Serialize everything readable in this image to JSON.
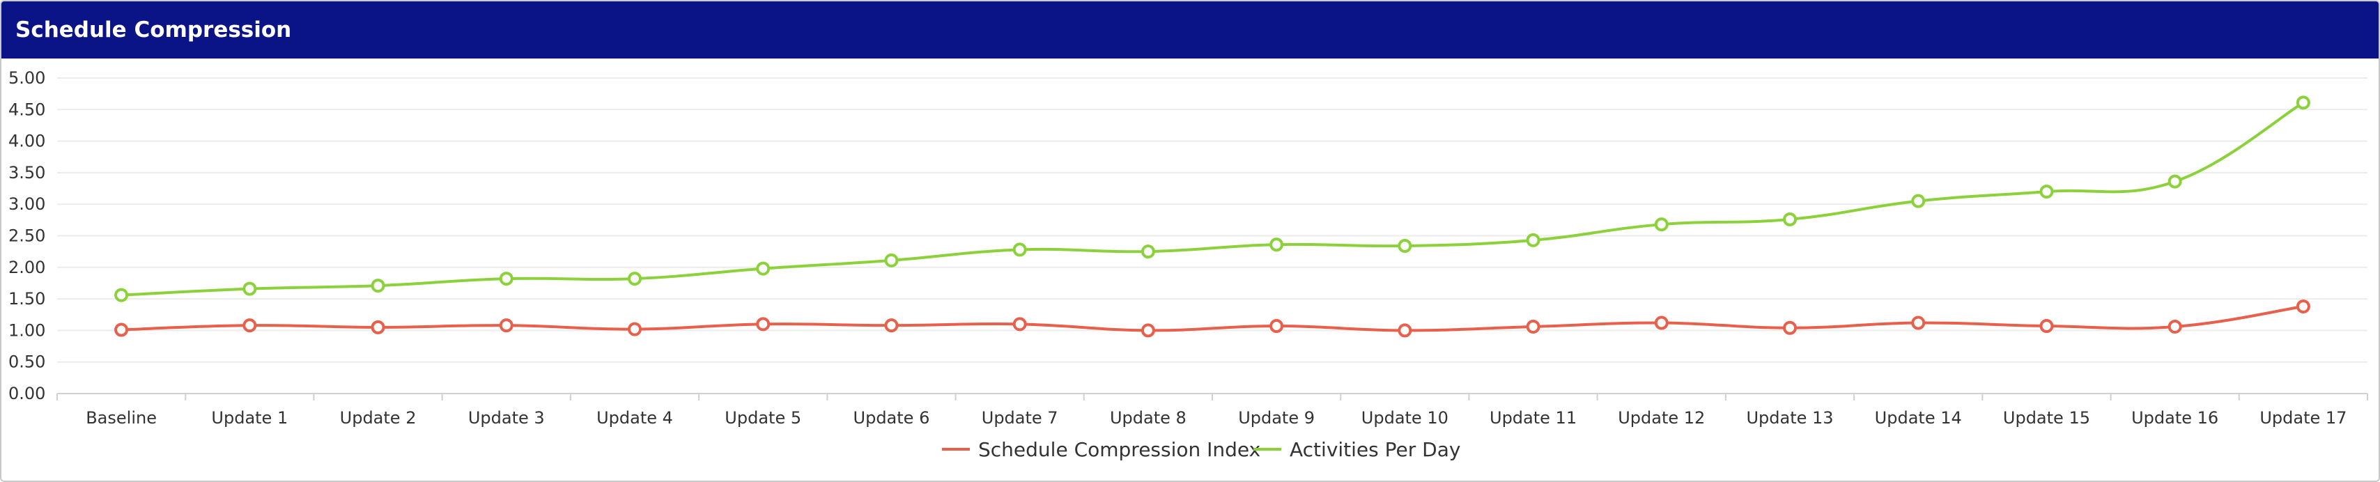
{
  "header": {
    "title": "Schedule Compression"
  },
  "chart_data": {
    "type": "line",
    "title": "",
    "xlabel": "",
    "ylabel": "",
    "categories": [
      "Baseline",
      "Update 1",
      "Update 2",
      "Update 3",
      "Update 4",
      "Update 5",
      "Update 6",
      "Update 7",
      "Update 8",
      "Update 9",
      "Update 10",
      "Update 11",
      "Update 12",
      "Update 13",
      "Update 14",
      "Update 15",
      "Update 16",
      "Update 17"
    ],
    "ylim": [
      0,
      5
    ],
    "yticks": [
      "0.00",
      "0.50",
      "1.00",
      "1.50",
      "2.00",
      "2.50",
      "3.00",
      "3.50",
      "4.00",
      "4.50",
      "5.00"
    ],
    "grid": true,
    "legend_position": "bottom",
    "series": [
      {
        "name": "Schedule Compression Index",
        "color": "#e8604c",
        "values": [
          1.01,
          1.08,
          1.05,
          1.08,
          1.02,
          1.1,
          1.08,
          1.1,
          1.0,
          1.07,
          1.0,
          1.06,
          1.12,
          1.04,
          1.12,
          1.07,
          1.06,
          1.38
        ]
      },
      {
        "name": "Activities Per Day",
        "color": "#8bd23a",
        "values": [
          1.56,
          1.66,
          1.71,
          1.82,
          1.82,
          1.98,
          2.11,
          2.28,
          2.25,
          2.36,
          2.34,
          2.43,
          2.68,
          2.76,
          3.05,
          3.2,
          3.36,
          4.61
        ]
      }
    ]
  }
}
